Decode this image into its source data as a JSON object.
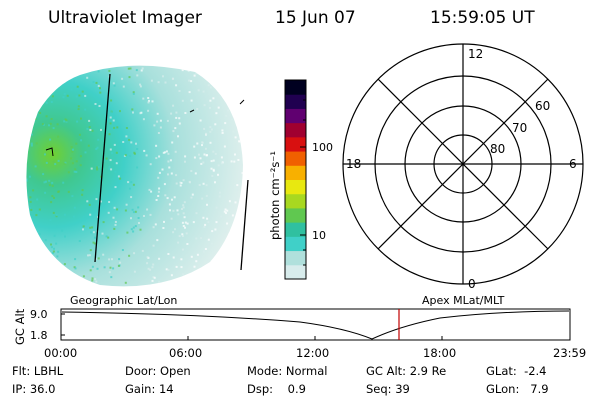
{
  "header": {
    "title": "Ultraviolet Imager",
    "date": "15 Jun 07",
    "time": "15:59:05 UT"
  },
  "colorbar": {
    "unit_label": "photon cm⁻²s⁻¹",
    "ticks": [
      "100",
      "10"
    ],
    "colors": [
      "#d8ecec",
      "#b0e0dc",
      "#40d0c8",
      "#30c0a0",
      "#60c850",
      "#a8d820",
      "#e8e810",
      "#f8b000",
      "#f06000",
      "#d81010",
      "#a00030",
      "#600070",
      "#200050",
      "#000020"
    ]
  },
  "polar_plot": {
    "mlt_labels": {
      "top": "12",
      "left": "18",
      "right": "6",
      "bottom": "0"
    },
    "lat_labels": [
      "60",
      "70",
      "80"
    ]
  },
  "timeline": {
    "y_axis_label": "GC Alt",
    "y_ticks": [
      "9.0",
      "1.8"
    ],
    "left_label": "Geographic Lat/Lon",
    "right_label": "Apex MLat/MLT",
    "x_ticks": [
      "00:00",
      "06:00",
      "12:00",
      "18:00",
      "23:59"
    ],
    "marker_color": "#c00000"
  },
  "info": {
    "row1": [
      {
        "label": "Flt:",
        "value": "LBHL"
      },
      {
        "label": "Door:",
        "value": "Open"
      },
      {
        "label": "Mode:",
        "value": "Normal"
      },
      {
        "label": "GC Alt:",
        "value": "2.9 Re"
      },
      {
        "label": "GLat:",
        "value": "-2.4"
      }
    ],
    "row2": [
      {
        "label": "IP:",
        "value": "36.0"
      },
      {
        "label": "Gain:",
        "value": "14"
      },
      {
        "label": "Dsp:",
        "value": "0.9"
      },
      {
        "label": "Seq:",
        "value": "39"
      },
      {
        "label": "GLon:",
        "value": "7.9"
      }
    ]
  }
}
